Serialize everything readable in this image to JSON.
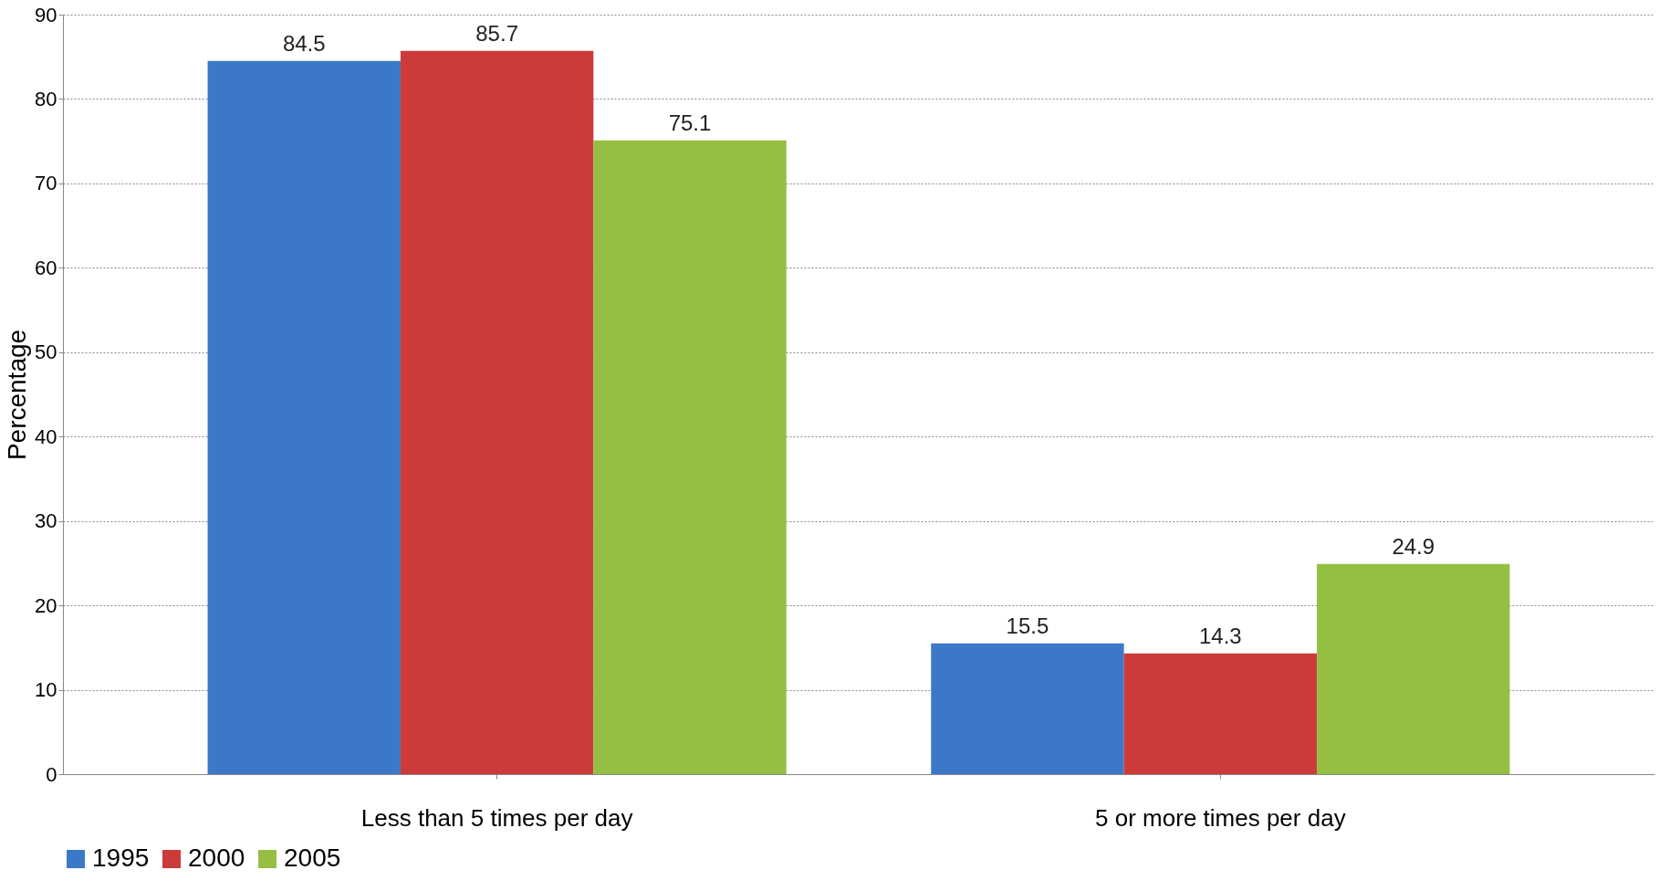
{
  "chart_data": {
    "type": "bar",
    "ylabel": "Percentage",
    "categories": [
      "Less than 5 times per day",
      "5 or more times per day"
    ],
    "series": [
      {
        "name": "1995",
        "color": "#3b78c8",
        "values": [
          84.5,
          15.5
        ]
      },
      {
        "name": "2000",
        "color": "#cc3b39",
        "values": [
          85.7,
          14.3
        ]
      },
      {
        "name": "2005",
        "color": "#95bf43",
        "values": [
          75.1,
          24.9
        ]
      }
    ],
    "ylim": [
      0,
      90
    ],
    "yticks": [
      0,
      10,
      20,
      30,
      40,
      50,
      60,
      70,
      80,
      90
    ],
    "grid": "y",
    "legend": "bottom",
    "data_labels": true
  }
}
